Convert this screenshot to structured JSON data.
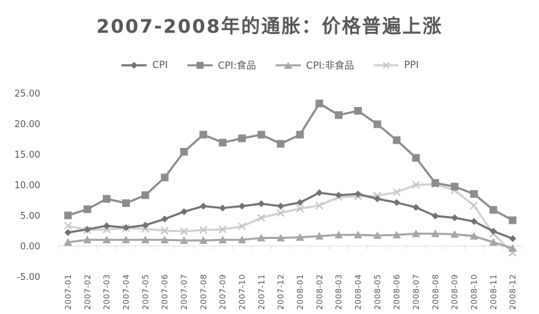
{
  "chart_data": {
    "type": "line",
    "title": "2007-2008年的通胀：价格普遍上涨",
    "xlabel": "",
    "ylabel": "",
    "ylim": [
      -5,
      25
    ],
    "yticks": [
      "25.00",
      "20.00",
      "15.00",
      "10.00",
      "5.00",
      "0.00",
      "-5.00"
    ],
    "categories": [
      "2007-01",
      "2007-02",
      "2007-03",
      "2007-04",
      "2007-05",
      "2007-06",
      "2007-07",
      "2007-08",
      "2007-09",
      "2007-10",
      "2007-11",
      "2007-12",
      "2008-01",
      "2008-02",
      "2008-03",
      "2008-04",
      "2008-05",
      "2008-06",
      "2008-07",
      "2008-08",
      "2008-09",
      "2008-10",
      "2008-11",
      "2008-12"
    ],
    "legend_position": "top",
    "grid": false,
    "series": [
      {
        "name": "CPI",
        "marker": "diamond",
        "color": "#737373",
        "values": [
          2.2,
          2.7,
          3.3,
          3.0,
          3.4,
          4.4,
          5.6,
          6.5,
          6.2,
          6.5,
          6.9,
          6.5,
          7.1,
          8.7,
          8.3,
          8.5,
          7.7,
          7.1,
          6.3,
          4.9,
          4.6,
          4.0,
          2.4,
          1.2
        ]
      },
      {
        "name": "CPI:食品",
        "marker": "square",
        "color": "#8c8c8c",
        "values": [
          5.0,
          6.0,
          7.7,
          7.0,
          8.3,
          11.2,
          15.4,
          18.2,
          16.9,
          17.6,
          18.2,
          16.7,
          18.2,
          23.3,
          21.4,
          22.1,
          19.9,
          17.3,
          14.4,
          10.3,
          9.7,
          8.5,
          5.9,
          4.2
        ]
      },
      {
        "name": "CPI:非食品",
        "marker": "triangle",
        "color": "#a6a6a6",
        "values": [
          0.6,
          1.0,
          1.0,
          1.0,
          1.0,
          1.0,
          0.9,
          0.9,
          1.0,
          1.0,
          1.3,
          1.3,
          1.4,
          1.6,
          1.8,
          1.8,
          1.7,
          1.8,
          2.0,
          2.0,
          1.9,
          1.6,
          0.6,
          -0.4
        ]
      },
      {
        "name": "PPI",
        "marker": "x",
        "color": "#d0d0d0",
        "values": [
          3.3,
          2.6,
          2.7,
          2.9,
          2.8,
          2.5,
          2.4,
          2.6,
          2.7,
          3.2,
          4.6,
          5.4,
          6.1,
          6.6,
          8.0,
          8.1,
          8.2,
          8.8,
          10.0,
          10.1,
          9.1,
          6.6,
          2.0,
          -1.1
        ]
      }
    ]
  }
}
